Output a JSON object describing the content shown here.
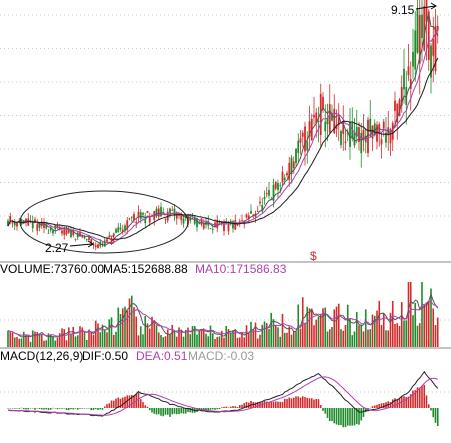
{
  "colors": {
    "background": "#ffffff",
    "grid": "#c8c8c8",
    "up": "#d42a2a",
    "down": "#1f8a2a",
    "neutral": "#c8a23a",
    "ma5": "#555555",
    "ma10": "#b040b0",
    "ma20": "#1c1c1c",
    "label_black": "#000000",
    "label_magenta": "#b040b0",
    "label_gray": "#999999"
  },
  "chart_data": {
    "type": "candlestick",
    "price": {
      "annotations": [
        {
          "text": "9.15",
          "at": "max"
        },
        {
          "text": "2.27",
          "at": "min"
        }
      ],
      "markers": [
        {
          "text": "$"
        },
        {
          "text": "$"
        }
      ],
      "shape": {
        "type": "ellipse",
        "around": "bottom-left base"
      },
      "grid_lines": 7,
      "keypoints": [
        [
          0,
          3.05
        ],
        [
          6,
          2.98
        ],
        [
          12,
          2.9
        ],
        [
          18,
          2.8
        ],
        [
          24,
          2.72
        ],
        [
          30,
          2.62
        ],
        [
          36,
          2.45
        ],
        [
          40,
          2.27
        ],
        [
          44,
          2.4
        ],
        [
          50,
          2.75
        ],
        [
          56,
          3.1
        ],
        [
          62,
          3.15
        ],
        [
          68,
          3.25
        ],
        [
          74,
          3.2
        ],
        [
          80,
          3.05
        ],
        [
          86,
          2.95
        ],
        [
          92,
          2.9
        ],
        [
          98,
          2.85
        ],
        [
          104,
          2.95
        ],
        [
          110,
          3.3
        ],
        [
          116,
          3.7
        ],
        [
          122,
          4.2
        ],
        [
          128,
          4.9
        ],
        [
          134,
          5.7
        ],
        [
          138,
          6.3
        ],
        [
          142,
          6.1
        ],
        [
          146,
          5.8
        ],
        [
          150,
          5.4
        ],
        [
          154,
          5.6
        ],
        [
          158,
          5.5
        ],
        [
          162,
          5.6
        ],
        [
          166,
          5.75
        ],
        [
          170,
          5.7
        ],
        [
          174,
          6.4
        ],
        [
          178,
          7.6
        ],
        [
          182,
          8.6
        ],
        [
          185,
          9.15
        ],
        [
          188,
          8.4
        ],
        [
          191,
          8.1
        ]
      ]
    },
    "volume": {
      "label": "VOLUME:73760.00",
      "ma5_label": "MA5:152688.88",
      "ma10_label": "MA10:171586.83",
      "keypoints": [
        [
          0,
          0.22
        ],
        [
          20,
          0.18
        ],
        [
          40,
          0.3
        ],
        [
          55,
          0.55
        ],
        [
          60,
          0.35
        ],
        [
          80,
          0.22
        ],
        [
          100,
          0.25
        ],
        [
          115,
          0.35
        ],
        [
          130,
          0.55
        ],
        [
          140,
          0.6
        ],
        [
          150,
          0.45
        ],
        [
          160,
          0.5
        ],
        [
          170,
          0.55
        ],
        [
          180,
          0.75
        ],
        [
          185,
          0.85
        ],
        [
          191,
          0.5
        ]
      ]
    },
    "macd": {
      "label": "MACD(12,26,9)",
      "dif_label": "DIF:0.50",
      "dea_label": "DEA:0.51",
      "macd_label": "MACD:-0.03",
      "keypoints": [
        [
          0,
          -0.05
        ],
        [
          15,
          -0.1
        ],
        [
          30,
          -0.15
        ],
        [
          42,
          -0.2
        ],
        [
          50,
          0.05
        ],
        [
          58,
          0.4
        ],
        [
          64,
          0.3
        ],
        [
          72,
          0.1
        ],
        [
          82,
          -0.05
        ],
        [
          92,
          -0.1
        ],
        [
          102,
          -0.05
        ],
        [
          112,
          0.15
        ],
        [
          122,
          0.35
        ],
        [
          132,
          0.7
        ],
        [
          138,
          0.85
        ],
        [
          144,
          0.55
        ],
        [
          150,
          0.2
        ],
        [
          156,
          -0.1
        ],
        [
          162,
          -0.05
        ],
        [
          170,
          0.1
        ],
        [
          178,
          0.4
        ],
        [
          185,
          0.9
        ],
        [
          191,
          0.5
        ]
      ]
    }
  }
}
